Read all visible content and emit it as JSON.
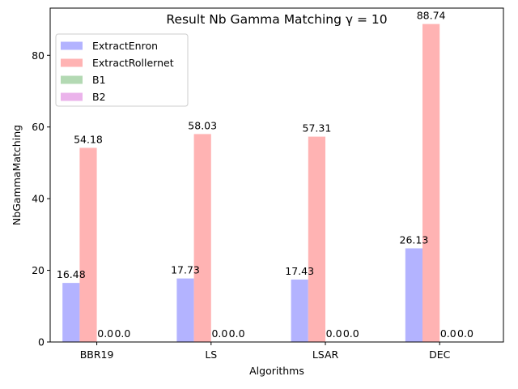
{
  "chart_data": {
    "type": "bar",
    "title": "Result Nb Gamma Matching γ = 10",
    "xlabel": "Algorithms",
    "ylabel": "NbGammaMatching",
    "categories": [
      "BBR19",
      "LS",
      "LSAR",
      "DEC"
    ],
    "ylim": [
      0,
      93.18
    ],
    "yticks": [
      0,
      20,
      40,
      60,
      80
    ],
    "grid": false,
    "legend_position": "top-left",
    "series": [
      {
        "name": "ExtractEnron",
        "values": [
          16.48,
          17.73,
          17.43,
          26.13
        ],
        "labels": [
          "16.48",
          "17.73",
          "17.43",
          "26.13"
        ],
        "color": "#b3b3ff"
      },
      {
        "name": "ExtractRollernet",
        "values": [
          54.18,
          58.03,
          57.31,
          88.74
        ],
        "labels": [
          "54.18",
          "58.03",
          "57.31",
          "88.74"
        ],
        "color": "#ffb3b3"
      },
      {
        "name": "B1",
        "values": [
          0,
          0,
          0,
          0
        ],
        "labels": [
          "0.0",
          "0.0",
          "0.0",
          "0.0"
        ],
        "color": "#b3d9b3"
      },
      {
        "name": "B2",
        "values": [
          0,
          0,
          0,
          0
        ],
        "labels": [
          "0.0",
          "0.0",
          "0.0",
          "0.0"
        ],
        "color": "#ebb3eb"
      }
    ]
  }
}
